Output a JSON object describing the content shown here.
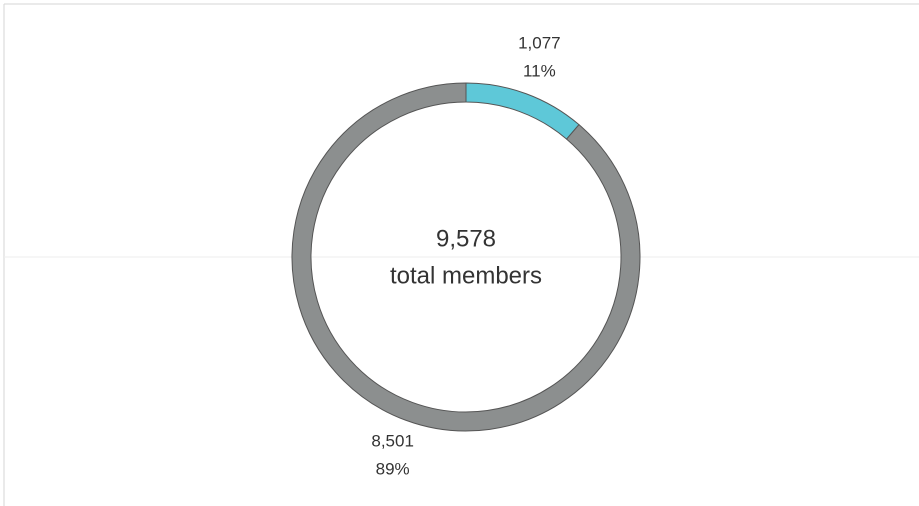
{
  "chart_data": {
    "type": "donut",
    "values": [
      1077,
      8501
    ],
    "value_labels": [
      "1,077",
      "8,501"
    ],
    "percent_values": [
      11,
      89
    ],
    "percent_labels": [
      "11%",
      "89%"
    ],
    "colors": [
      "#5ec8d8",
      "#8c8f8f"
    ],
    "center_value": "9,578",
    "center_text": "total members"
  }
}
